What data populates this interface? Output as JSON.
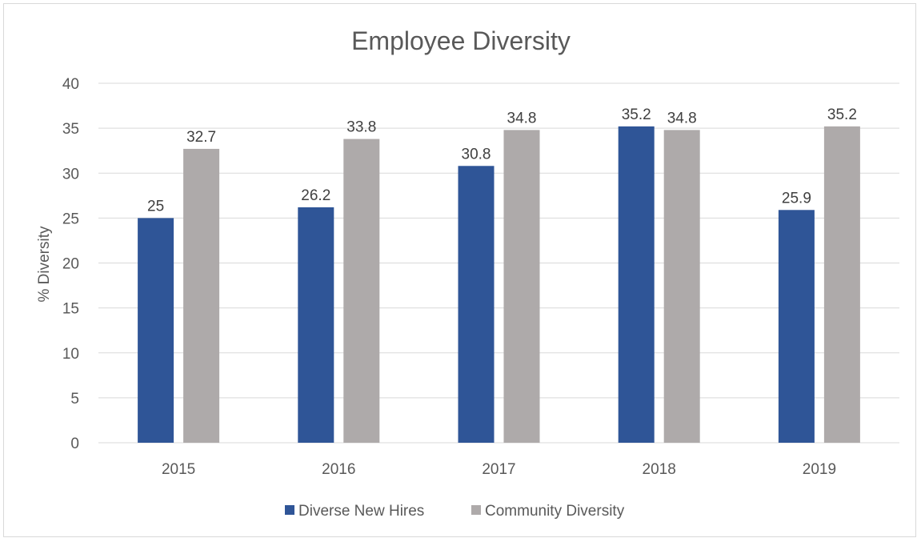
{
  "chart_data": {
    "type": "bar",
    "title": "Employee Diversity",
    "xlabel": "",
    "ylabel": "% Diversity",
    "ylim": [
      0,
      40
    ],
    "yticks": [
      0,
      5,
      10,
      15,
      20,
      25,
      30,
      35,
      40
    ],
    "grid": true,
    "legend_position": "bottom",
    "categories": [
      "2015",
      "2016",
      "2017",
      "2018",
      "2019"
    ],
    "series": [
      {
        "name": "Diverse New Hires",
        "color": "#2f5597",
        "values": [
          25,
          26.2,
          30.8,
          35.2,
          25.9
        ]
      },
      {
        "name": "Community Diversity",
        "color": "#aeaaaa",
        "values": [
          32.7,
          33.8,
          34.8,
          34.8,
          35.2
        ]
      }
    ]
  }
}
